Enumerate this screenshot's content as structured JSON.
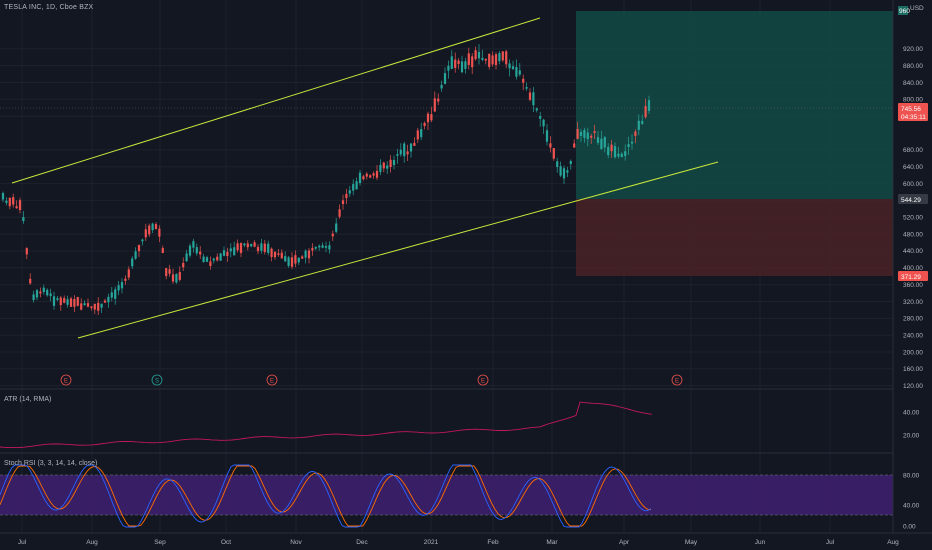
{
  "header": {
    "symbol_title": "TESLA INC, 1D, Cboe BZX",
    "currency": "USD"
  },
  "indicators": {
    "atr_title": "ATR (14, RMA)",
    "stoch_title": "Stoch RSI (3, 3, 14, 14, close)"
  },
  "price_axis": {
    "ticks": [
      "920.00",
      "880.00",
      "840.00",
      "800.00",
      "760.00",
      "680.00",
      "640.00",
      "600.00",
      "560.00",
      "520.00",
      "480.00",
      "440.00",
      "400.00",
      "360.00",
      "320.00",
      "280.00",
      "240.00",
      "200.00",
      "160.00",
      "120.00"
    ],
    "tick_values": [
      920,
      880,
      840,
      800,
      760,
      680,
      640,
      600,
      560,
      520,
      480,
      440,
      400,
      360,
      320,
      280,
      240,
      200,
      160,
      120
    ],
    "price_badge": "745.56",
    "countdown_badge": "04:35:11",
    "target_badge": "544.29",
    "stop_badge": "371.29",
    "top_badge": "960"
  },
  "atr_axis": {
    "ticks": [
      "40.00",
      "20.00"
    ]
  },
  "stoch_axis": {
    "ticks": [
      "80.00",
      "40.00",
      "0.00"
    ]
  },
  "time_axis": {
    "labels": [
      "Jul",
      "Aug",
      "Sep",
      "Oct",
      "Nov",
      "Dec",
      "2021",
      "Feb",
      "Mar",
      "Apr",
      "May",
      "Jun",
      "Jul",
      "Aug"
    ]
  },
  "event_markers": [
    {
      "label": "E",
      "kind": "earnings"
    },
    {
      "label": "S",
      "kind": "split"
    },
    {
      "label": "E",
      "kind": "earnings"
    },
    {
      "label": "E",
      "kind": "earnings"
    },
    {
      "label": "E",
      "kind": "earnings"
    },
    {
      "label": "E",
      "kind": "earnings"
    }
  ],
  "colors": {
    "up": "#26a69a",
    "down": "#ef5350",
    "channel": "#c8e63c",
    "target_zone": "#134a44",
    "stop_zone": "#4a2226",
    "atr": "#c2185b",
    "stoch_k": "#2962ff",
    "stoch_d": "#ff6d00",
    "stoch_band": "#3d1f6b"
  }
}
